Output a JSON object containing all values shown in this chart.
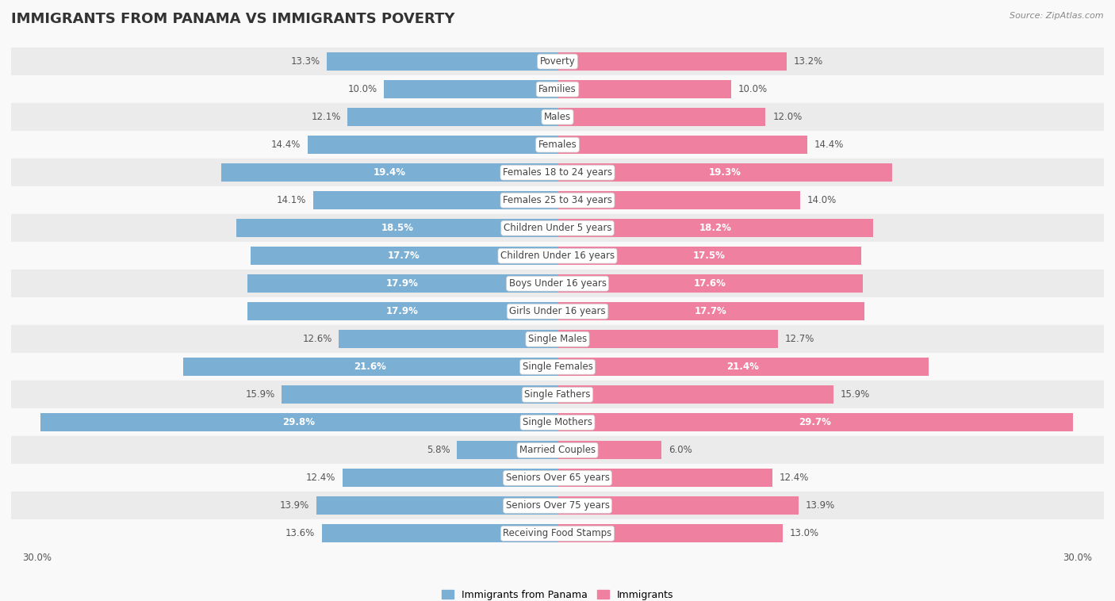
{
  "title": "IMMIGRANTS FROM PANAMA VS IMMIGRANTS POVERTY",
  "source": "Source: ZipAtlas.com",
  "categories": [
    "Poverty",
    "Families",
    "Males",
    "Females",
    "Females 18 to 24 years",
    "Females 25 to 34 years",
    "Children Under 5 years",
    "Children Under 16 years",
    "Boys Under 16 years",
    "Girls Under 16 years",
    "Single Males",
    "Single Females",
    "Single Fathers",
    "Single Mothers",
    "Married Couples",
    "Seniors Over 65 years",
    "Seniors Over 75 years",
    "Receiving Food Stamps"
  ],
  "left_values": [
    13.3,
    10.0,
    12.1,
    14.4,
    19.4,
    14.1,
    18.5,
    17.7,
    17.9,
    17.9,
    12.6,
    21.6,
    15.9,
    29.8,
    5.8,
    12.4,
    13.9,
    13.6
  ],
  "right_values": [
    13.2,
    10.0,
    12.0,
    14.4,
    19.3,
    14.0,
    18.2,
    17.5,
    17.6,
    17.7,
    12.7,
    21.4,
    15.9,
    29.7,
    6.0,
    12.4,
    13.9,
    13.0
  ],
  "left_color": "#7bafd4",
  "right_color": "#f080a0",
  "left_label": "Immigrants from Panama",
  "right_label": "Immigrants",
  "x_max": 30.0,
  "fig_bg": "#f9f9f9",
  "row_colors": [
    "#ebebeb",
    "#f9f9f9"
  ],
  "title_fontsize": 13,
  "cat_fontsize": 8.5,
  "val_fontsize": 8.5,
  "bar_height": 0.65,
  "inner_label_threshold": 17.5
}
